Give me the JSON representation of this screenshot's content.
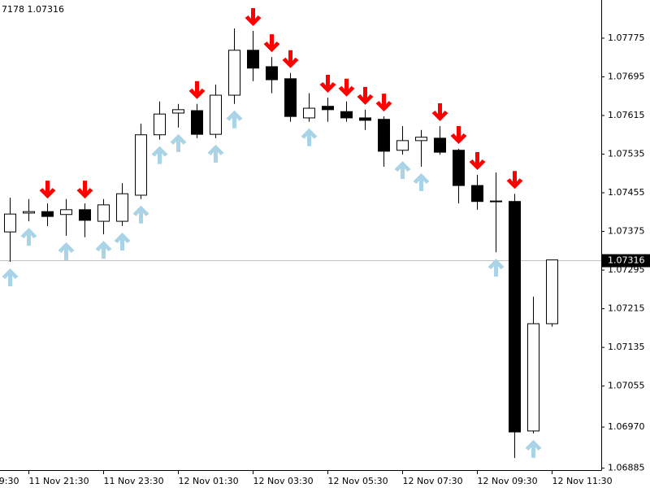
{
  "chart_data": {
    "type": "candlestick",
    "info": "7178 1.07316",
    "open": [
      1.07374,
      1.07413,
      1.07416,
      1.0741,
      1.0742,
      1.07396,
      1.07396,
      1.0745,
      1.07575,
      1.0762,
      1.07625,
      1.07576,
      1.07657,
      1.0775,
      1.07716,
      1.07691,
      1.0761,
      1.07634,
      1.07623,
      1.0761,
      1.07607,
      1.07543,
      1.07563,
      1.07568,
      1.07543,
      1.0747,
      1.07438,
      1.07437,
      1.06962,
      1.07184
    ],
    "high": [
      1.07445,
      1.07442,
      1.07433,
      1.07442,
      1.07433,
      1.07442,
      1.07475,
      1.07598,
      1.07644,
      1.07639,
      1.07639,
      1.07679,
      1.07795,
      1.0779,
      1.07736,
      1.07703,
      1.07661,
      1.07652,
      1.07644,
      1.07627,
      1.07613,
      1.07593,
      1.07585,
      1.07593,
      1.07546,
      1.07492,
      1.07497,
      1.07453,
      1.0724,
      1.07316
    ],
    "low": [
      1.07312,
      1.07396,
      1.07386,
      1.07366,
      1.07363,
      1.07369,
      1.07386,
      1.07442,
      1.07565,
      1.0759,
      1.07568,
      1.07568,
      1.07639,
      1.07686,
      1.07661,
      1.07602,
      1.07602,
      1.07602,
      1.07602,
      1.07585,
      1.07509,
      1.07534,
      1.07509,
      1.07534,
      1.07433,
      1.0742,
      1.07332,
      1.06906,
      1.06957,
      1.07178
    ],
    "close": [
      1.07411,
      1.07416,
      1.07406,
      1.0742,
      1.07398,
      1.0743,
      1.07453,
      1.07575,
      1.07618,
      1.07627,
      1.07576,
      1.07657,
      1.0775,
      1.07713,
      1.07689,
      1.07613,
      1.0763,
      1.07627,
      1.0761,
      1.07605,
      1.07541,
      1.07563,
      1.0757,
      1.07539,
      1.0747,
      1.07437,
      1.07437,
      1.0696,
      1.07184,
      1.07316
    ],
    "signals": [
      "up",
      "up",
      "down",
      "up",
      "down",
      "up",
      "up",
      "up",
      "up",
      "up",
      "down",
      "up",
      "up",
      "down",
      "down",
      "down",
      "up",
      "down",
      "down",
      "down",
      "down",
      "up",
      "up",
      "down",
      "down",
      "down",
      "up",
      "down",
      "up",
      null
    ],
    "signal_colors": {
      "up": "#a9d3e6",
      "down": "#ff0000"
    },
    "up_color": "#ffffff",
    "down_color": "#000000",
    "price_line_color": "#c0c0c0",
    "ylim": [
      1.06881,
      1.07854
    ],
    "yticks": [
      1.07775,
      1.07695,
      1.07615,
      1.07535,
      1.07455,
      1.07375,
      1.07295,
      1.07215,
      1.07135,
      1.07055,
      {
        "value": 1.0697,
        "label": "1.06970"
      },
      1.06885
    ],
    "xlim": [
      -0.52,
      31.65
    ],
    "xticks": [
      {
        "value": -3,
        "label": "9:30"
      },
      {
        "value": 1,
        "label": "11 Nov 21:30"
      },
      {
        "value": 5,
        "label": "11 Nov 23:30"
      },
      {
        "value": 9,
        "label": "12 Nov 01:30"
      },
      {
        "value": 13,
        "label": "12 Nov 03:30"
      },
      {
        "value": 17,
        "label": "12 Nov 05:30"
      },
      {
        "value": 21,
        "label": "12 Nov 07:30"
      },
      {
        "value": 25,
        "label": "12 Nov 09:30"
      },
      {
        "value": 29,
        "label": "12 Nov 11:30"
      }
    ]
  }
}
